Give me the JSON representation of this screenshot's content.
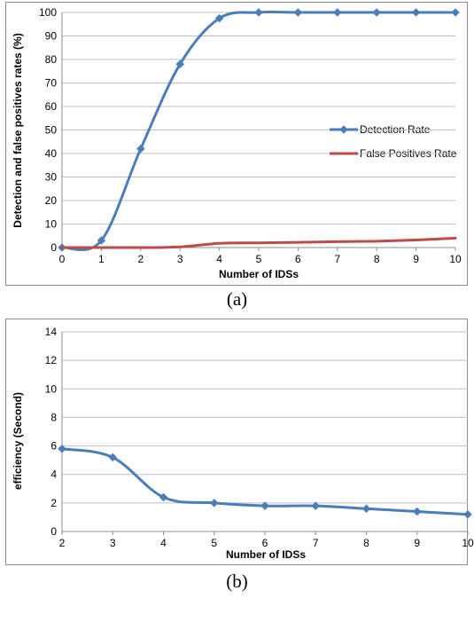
{
  "captions": {
    "a": "(a)",
    "b": "(b)"
  },
  "colors": {
    "detection": "#4a7ebb",
    "false_positive": "#be4b48",
    "efficiency": "#4a7ebb",
    "grid": "#bfbfbf"
  },
  "chart_data": [
    {
      "type": "line",
      "xlabel": "Number of IDSs",
      "ylabel": "Detection  and false positives rates (%)",
      "x": [
        0,
        1,
        2,
        3,
        4,
        5,
        6,
        7,
        8,
        9,
        10
      ],
      "xlim": [
        0,
        10
      ],
      "ylim": [
        0,
        100
      ],
      "y_ticks": [
        0,
        10,
        20,
        30,
        40,
        50,
        60,
        70,
        80,
        90,
        100
      ],
      "grid": true,
      "legend": "right",
      "series": [
        {
          "name": "Detection Rate",
          "marker": "diamond",
          "values": [
            0,
            3,
            42,
            78,
            97.5,
            100,
            100,
            100,
            100,
            100,
            100
          ]
        },
        {
          "name": "False Positives Rate",
          "marker": "none",
          "values": [
            0,
            0,
            0,
            0.3,
            1.8,
            2,
            2.2,
            2.5,
            2.7,
            3.2,
            4
          ]
        }
      ]
    },
    {
      "type": "line",
      "xlabel": "Number of IDSs",
      "ylabel": "efficiency (Second)",
      "x": [
        2,
        3,
        4,
        5,
        6,
        7,
        8,
        9,
        10
      ],
      "xlim": [
        2,
        10
      ],
      "ylim": [
        0,
        14
      ],
      "y_ticks": [
        0,
        2,
        4,
        6,
        8,
        10,
        12,
        14
      ],
      "grid": true,
      "series": [
        {
          "marker": "diamond",
          "values": [
            5.8,
            5.2,
            2.4,
            2.0,
            1.8,
            1.8,
            1.6,
            1.4,
            1.2
          ]
        }
      ]
    }
  ]
}
